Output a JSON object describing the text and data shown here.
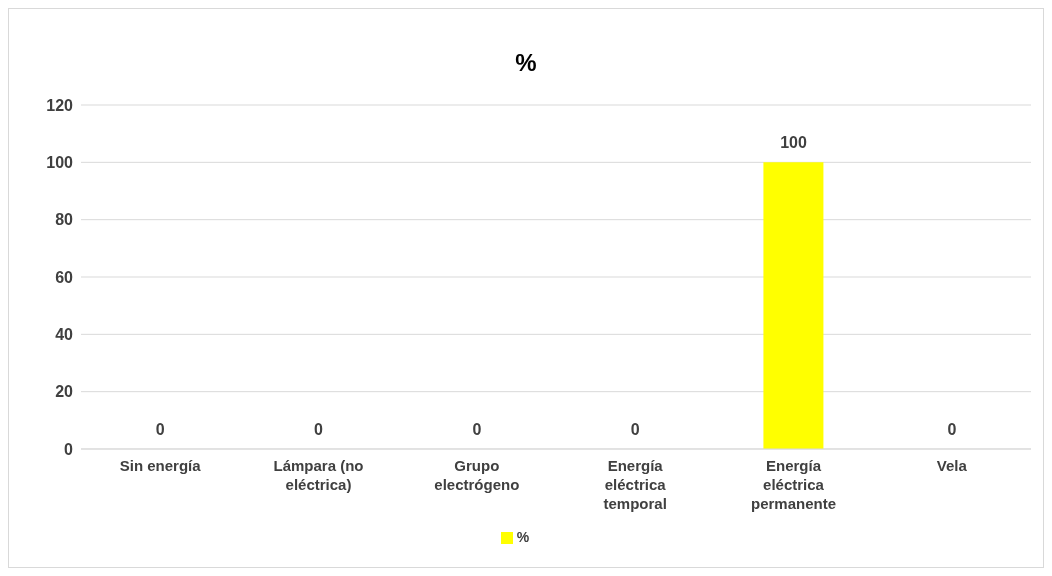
{
  "chart_data": {
    "type": "bar",
    "title": "%",
    "categories": [
      "Sin energía",
      "Lámpara (no eléctrica)",
      "Grupo electrógeno",
      "Energía eléctrica temporal",
      "Energía eléctrica permanente",
      "Vela"
    ],
    "series": [
      {
        "name": "%",
        "color": "#ffff00",
        "values": [
          0,
          0,
          0,
          0,
          100,
          0
        ]
      }
    ],
    "ylim": [
      0,
      120
    ],
    "yticks": [
      0,
      20,
      40,
      60,
      80,
      100,
      120
    ],
    "grid": "y",
    "legend": "bottom",
    "data_labels": true
  }
}
